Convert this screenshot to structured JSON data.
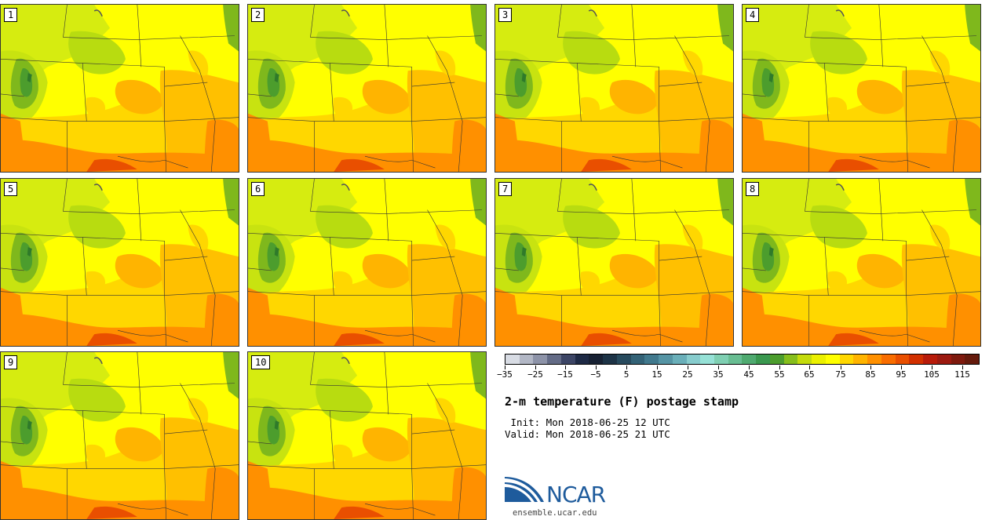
{
  "stamps": [
    "1",
    "2",
    "3",
    "4",
    "5",
    "6",
    "7",
    "8",
    "9",
    "10"
  ],
  "colorbar": {
    "colors": [
      "#d8dce4",
      "#b2b7c5",
      "#8d93a8",
      "#636b86",
      "#3c4565",
      "#1e2a45",
      "#172133",
      "#1d3346",
      "#274a5d",
      "#336276",
      "#41798d",
      "#5594a4",
      "#6aafb9",
      "#87cccd",
      "#96e1d6",
      "#7fcfb2",
      "#68bd92",
      "#4faa70",
      "#3a984f",
      "#4c9d2d",
      "#86be1c",
      "#c4db0c",
      "#ebf000",
      "#ffff00",
      "#ffd700",
      "#ffb400",
      "#ff9000",
      "#f96d00",
      "#e94f00",
      "#d23000",
      "#b81b0a",
      "#9c1a10",
      "#7e1a0e",
      "#651a0c"
    ],
    "ticks": [
      "−35",
      "−25",
      "−15",
      "−5",
      "5",
      "15",
      "25",
      "35",
      "45",
      "55",
      "65",
      "75",
      "85",
      "95",
      "105",
      "115"
    ]
  },
  "title": "2-m temperature (F) postage stamp",
  "init": " Init: Mon 2018-06-25 12 UTC",
  "valid": "Valid: Mon 2018-06-25 21 UTC",
  "logo": {
    "text": "NCAR",
    "url": "ensemble.ucar.edu"
  }
}
